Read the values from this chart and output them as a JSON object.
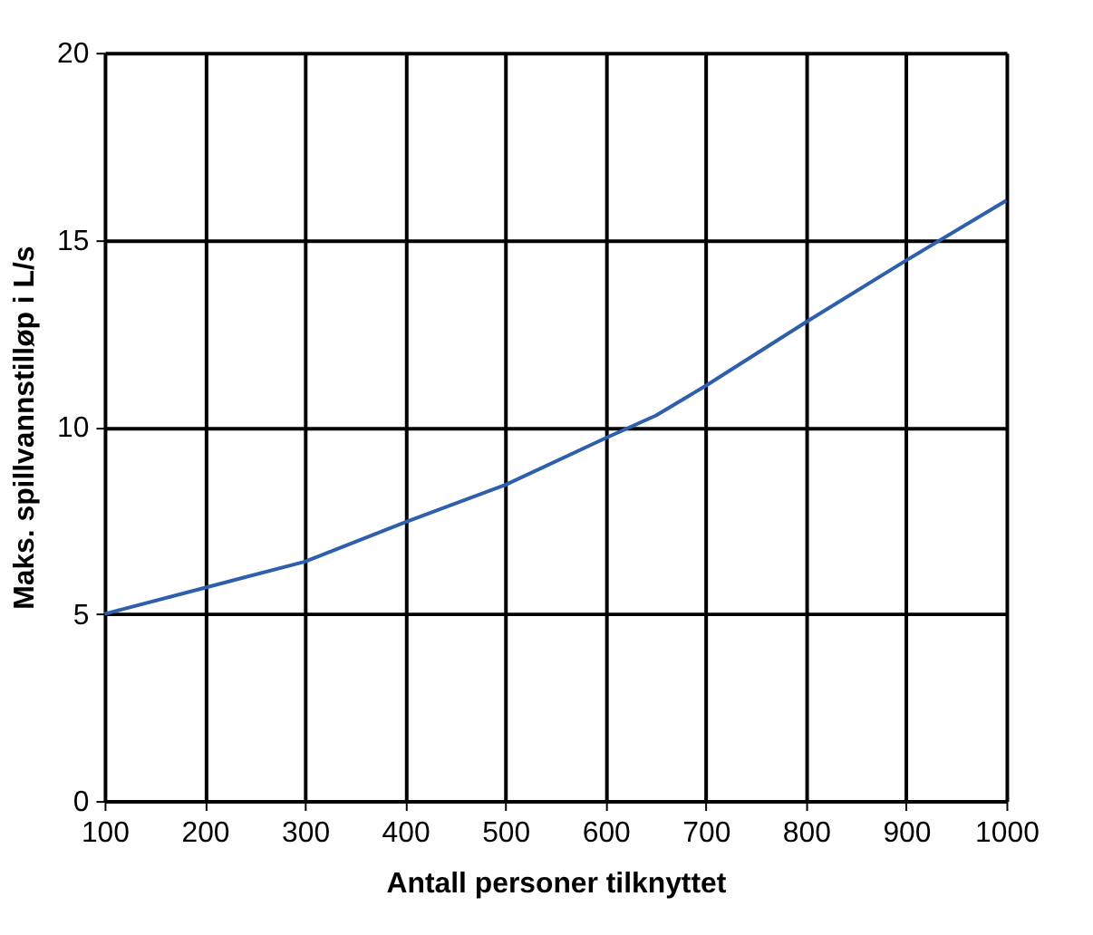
{
  "chart_data": {
    "type": "line",
    "xlabel": "Antall personer tilknyttet",
    "ylabel": "Maks. spillvannstilløp i L/s",
    "x": [
      100,
      200,
      300,
      400,
      500,
      600,
      650,
      700,
      800,
      900,
      1000
    ],
    "series": [
      {
        "color": "#2e5fac",
        "values": [
          5.0,
          5.7,
          6.4,
          7.45,
          8.45,
          9.7,
          10.3,
          11.1,
          12.8,
          14.45,
          16.05
        ]
      }
    ],
    "xlim": [
      100,
      1000
    ],
    "xticks": [
      100,
      200,
      300,
      400,
      500,
      600,
      700,
      800,
      900,
      1000
    ],
    "ylim": [
      0,
      20
    ],
    "yticks": [
      0,
      5,
      10,
      15,
      20
    ],
    "grid": true,
    "marker": "none",
    "line_style": "solid"
  }
}
